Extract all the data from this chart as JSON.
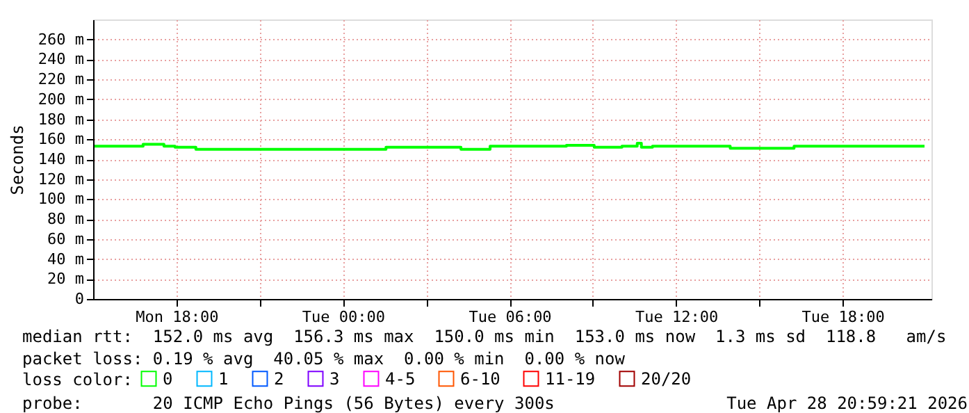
{
  "chart_data": {
    "type": "step",
    "ylabel": "Seconds",
    "x": [
      "2026-04-27T15:03",
      "2026-04-27T16:48",
      "2026-04-27T17:33",
      "2026-04-27T17:57",
      "2026-04-27T18:42",
      "2026-04-28T01:33",
      "2026-04-28T04:15",
      "2026-04-28T05:18",
      "2026-04-28T08:03",
      "2026-04-28T09:03",
      "2026-04-28T10:03",
      "2026-04-28T10:36",
      "2026-04-28T10:45",
      "2026-04-28T11:09",
      "2026-04-28T13:57",
      "2026-04-28T16:15",
      "2026-04-28T20:57"
    ],
    "series": [
      {
        "name": "0",
        "color": "#00ff00",
        "values": [
          153,
          155,
          153,
          152,
          150,
          152,
          150,
          153,
          154,
          152,
          153,
          156,
          152,
          153,
          151,
          153,
          153
        ]
      },
      {
        "name": "1",
        "color": "#00b8ff",
        "values": [
          null,
          null,
          null,
          null,
          null,
          null,
          null,
          null,
          null,
          null,
          null,
          null,
          null,
          null,
          null,
          null,
          null
        ]
      },
      {
        "name": "2",
        "color": "#0059ff",
        "values": [
          null,
          null,
          null,
          null,
          null,
          null,
          null,
          null,
          null,
          null,
          null,
          null,
          null,
          null,
          null,
          null,
          null
        ]
      },
      {
        "name": "3",
        "color": "#7e00ff",
        "values": [
          null,
          null,
          null,
          null,
          null,
          null,
          null,
          null,
          null,
          null,
          null,
          null,
          null,
          null,
          null,
          null,
          null
        ]
      },
      {
        "name": "4-5",
        "color": "#ff00ff",
        "values": [
          null,
          null,
          null,
          null,
          null,
          null,
          null,
          null,
          null,
          null,
          null,
          null,
          null,
          null,
          null,
          null,
          null
        ]
      },
      {
        "name": "6-10",
        "color": "#ff5500",
        "values": [
          null,
          null,
          null,
          null,
          null,
          null,
          null,
          null,
          null,
          null,
          null,
          null,
          null,
          null,
          null,
          null,
          null
        ]
      },
      {
        "name": "11-19",
        "color": "#ff0000",
        "values": [
          null,
          null,
          null,
          null,
          null,
          null,
          null,
          null,
          null,
          null,
          null,
          null,
          null,
          null,
          null,
          null,
          null
        ]
      },
      {
        "name": "20/20",
        "color": "#a10000",
        "values": [
          null,
          null,
          null,
          null,
          null,
          null,
          null,
          null,
          null,
          null,
          null,
          null,
          null,
          null,
          null,
          null,
          null
        ]
      }
    ],
    "legend_title": "loss color:",
    "legend": "bottom",
    "xlim": [
      "2026-04-27T15:00",
      "2026-04-28T21:12"
    ],
    "xticks": [
      {
        "value": "2026-04-27T18:00",
        "label": "Mon 18:00"
      },
      {
        "value": "2026-04-27T21:00",
        "label": null
      },
      {
        "value": "2026-04-28T00:00",
        "label": "Tue 00:00"
      },
      {
        "value": "2026-04-28T03:00",
        "label": null
      },
      {
        "value": "2026-04-28T06:00",
        "label": "Tue 06:00"
      },
      {
        "value": "2026-04-28T09:00",
        "label": null
      },
      {
        "value": "2026-04-28T12:00",
        "label": "Tue 12:00"
      },
      {
        "value": "2026-04-28T15:00",
        "label": null
      },
      {
        "value": "2026-04-28T18:00",
        "label": "Tue 18:00"
      }
    ],
    "ylim": [
      0,
      280
    ],
    "yticks": [
      0,
      {
        "value": 20,
        "label": "20 m"
      },
      {
        "value": 40,
        "label": "40 m"
      },
      {
        "value": 60,
        "label": "60 m"
      },
      {
        "value": 80,
        "label": "80 m"
      },
      {
        "value": 100,
        "label": "100 m"
      },
      {
        "value": 120,
        "label": "120 m"
      },
      {
        "value": 140,
        "label": "140 m"
      },
      {
        "value": 160,
        "label": "160 m"
      },
      {
        "value": 180,
        "label": "180 m"
      },
      {
        "value": 200,
        "label": "200 m"
      },
      {
        "value": 220,
        "label": "220 m"
      },
      {
        "value": 240,
        "label": "240 m"
      },
      {
        "value": 260,
        "label": "260 m"
      }
    ],
    "grid": true,
    "marker": "none",
    "line_style": "solid",
    "annotations": [
      "median rtt:  152.0 ms avg  156.3 ms max  150.0 ms min  153.0 ms now  1.3 ms sd  118.8   am/s",
      "packet loss: 0.19 % avg  40.05 % max  0.00 % min  0.00 % now",
      "probe:       20 ICMP Echo Pings (56 Bytes) every 300s",
      "Tue Apr 28 20:59:21 2026"
    ]
  }
}
